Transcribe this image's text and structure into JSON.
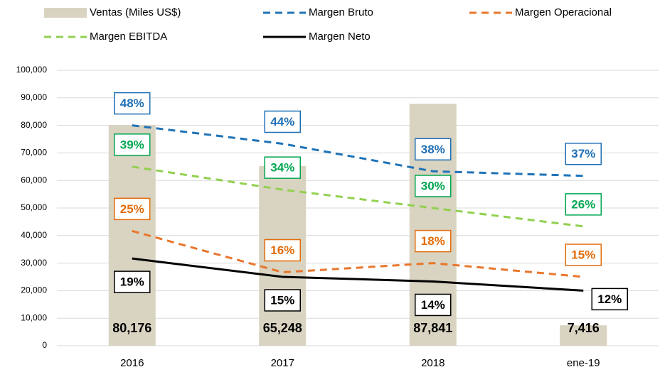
{
  "chart_data": {
    "type": "bar_line",
    "categories": [
      "2016",
      "2017",
      "2018",
      "ene-19"
    ],
    "series": [
      {
        "name": "Ventas (Miles US$)",
        "type": "bar",
        "color": "#d9d3c1",
        "values": [
          80176,
          65248,
          87841,
          7416
        ],
        "value_labels": [
          "80,176",
          "65,248",
          "87,841",
          "7,416"
        ]
      },
      {
        "name": "Margen Bruto",
        "type": "line",
        "axis": "y2",
        "dash": true,
        "color": "#1f73b7",
        "label_color": "#1f6fb5",
        "values": [
          48,
          44,
          38,
          37
        ],
        "value_labels": [
          "48%",
          "44%",
          "38%",
          "37%"
        ]
      },
      {
        "name": "Margen Operacional",
        "type": "line",
        "axis": "y2",
        "dash": true,
        "color": "#e8762c",
        "label_color": "#e36c0a",
        "values": [
          25,
          16,
          18,
          15
        ],
        "value_labels": [
          "25%",
          "16%",
          "18%",
          "15%"
        ]
      },
      {
        "name": "Margen EBITDA",
        "type": "line",
        "axis": "y2",
        "dash": true,
        "color": "#92d050",
        "label_color": "#00a651",
        "values": [
          39,
          34,
          30,
          26
        ],
        "value_labels": [
          "39%",
          "34%",
          "30%",
          "26%"
        ]
      },
      {
        "name": "Margen Neto",
        "type": "line",
        "axis": "y2",
        "dash": false,
        "color": "#000000",
        "label_color": "#000000",
        "values": [
          19,
          15,
          14,
          12
        ],
        "value_labels": [
          "19%",
          "15%",
          "14%",
          "12%"
        ]
      }
    ],
    "ylim": [
      0,
      100000
    ],
    "yticks": [
      0,
      {
        "value": 10000,
        "label": "10,000"
      },
      {
        "value": 20000,
        "label": "20,000"
      },
      {
        "value": 30000,
        "label": "30,000"
      },
      {
        "value": 40000,
        "label": "40,000"
      },
      {
        "value": 50000,
        "label": "50,000"
      },
      {
        "value": 60000,
        "label": "60,000"
      },
      {
        "value": 70000,
        "label": "70,000"
      },
      {
        "value": 80000,
        "label": "80,000"
      },
      {
        "value": 90000,
        "label": "90,000"
      },
      {
        "value": 100000,
        "label": "100,000"
      }
    ],
    "y2lim": [
      0,
      60
    ],
    "grid": true
  }
}
